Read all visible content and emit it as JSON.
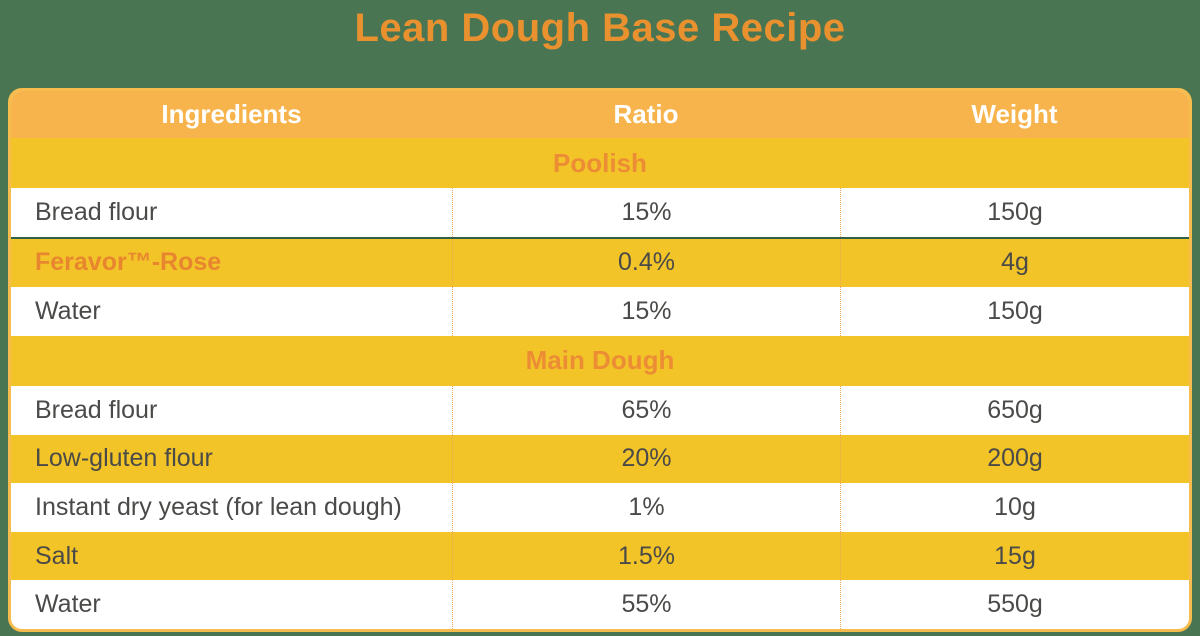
{
  "chart_data": {
    "type": "table",
    "title": "Lean Dough Base Recipe",
    "columns": [
      "Ingredients",
      "Ratio",
      "Weight"
    ],
    "sections": [
      {
        "name": "Poolish",
        "rows": [
          {
            "ingredient": "Bread flour",
            "ratio": "15%",
            "weight": "150g",
            "emphasis": false
          },
          {
            "ingredient": "Feravor™-Rose",
            "ratio": "0.4%",
            "weight": "4g",
            "emphasis": true
          },
          {
            "ingredient": "Water",
            "ratio": "15%",
            "weight": "150g",
            "emphasis": false
          }
        ]
      },
      {
        "name": "Main Dough",
        "rows": [
          {
            "ingredient": "Bread flour",
            "ratio": "65%",
            "weight": "650g",
            "emphasis": false
          },
          {
            "ingredient": "Low-gluten flour",
            "ratio": "20%",
            "weight": "200g",
            "emphasis": false
          },
          {
            "ingredient": "Instant dry yeast (for lean dough)",
            "ratio": "1%",
            "weight": "10g",
            "emphasis": false
          },
          {
            "ingredient": "Salt",
            "ratio": "1.5%",
            "weight": "15g",
            "emphasis": false
          },
          {
            "ingredient": "Water",
            "ratio": "55%",
            "weight": "550g",
            "emphasis": false
          }
        ]
      }
    ],
    "layout": {
      "legend": "none",
      "grid": "dotted-column-dividers",
      "row_alternation": [
        "white",
        "gold"
      ]
    }
  },
  "colors": {
    "page_bg": "#4A7553",
    "title_orange": "#E8912E",
    "header_bg": "#F8B44C",
    "header_text": "#FFFFFF",
    "gold": "#F2C428",
    "section_text_orange": "#EC8C35",
    "row_text": "#4A4A48",
    "brand_orange": "#E8862F",
    "divider_dotted": "#EFA75B",
    "separator_green": "#316049",
    "table_border": "#F6BC4E"
  }
}
